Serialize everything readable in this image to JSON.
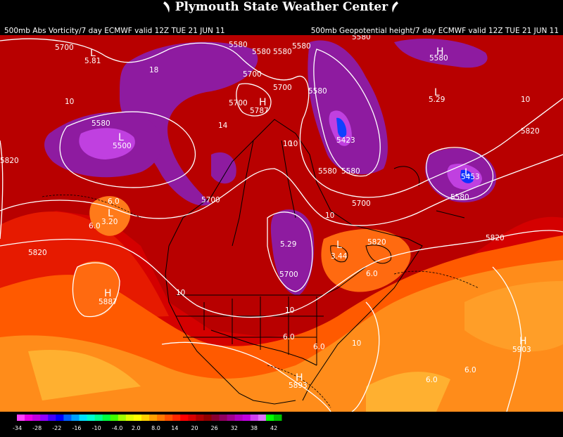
{
  "header": {
    "title": "Plymouth State Weather Center",
    "caption_left": "500mb Abs Vorticity/7 day ECMWF valid 12Z TUE 21 JUN 11",
    "caption_right": "500mb Geopotential height/7 day ECMWF valid 12Z TUE 21 JUN 11"
  },
  "map": {
    "centers": [
      {
        "type": "H",
        "value": "5787"
      },
      {
        "type": "H",
        "value": "5887"
      },
      {
        "type": "H",
        "value": "5893"
      },
      {
        "type": "H",
        "value": "5903"
      },
      {
        "type": "H",
        "value": ""
      },
      {
        "type": "L",
        "value": "5.81"
      },
      {
        "type": "L",
        "value": "5500"
      },
      {
        "type": "L",
        "value": "5423"
      },
      {
        "type": "L",
        "value": "5453"
      },
      {
        "type": "L",
        "value": "5.29"
      },
      {
        "type": "L",
        "value": "3.20"
      },
      {
        "type": "L",
        "value": "3.44"
      },
      {
        "type": "L",
        "value": "5.29"
      }
    ],
    "height_labels": [
      "5700",
      "5580",
      "5580",
      "5580",
      "5580",
      "5580",
      "5700",
      "5700",
      "5580",
      "5580",
      "5700",
      "5700",
      "5580",
      "5700",
      "5820",
      "5820",
      "5820",
      "5820",
      "5820",
      "5580",
      "5700",
      "5580",
      "5580"
    ],
    "vorticity_labels": [
      "10",
      "10",
      "18",
      "14",
      "10",
      "10",
      "10",
      "6.0",
      "6.0",
      "10",
      "10",
      "6.0",
      "6.0",
      "6.0",
      "10",
      "6.0",
      "6.0"
    ]
  },
  "colorbar": {
    "ticks": [
      "-34",
      "-28",
      "-22",
      "-16",
      "-10",
      "-4.0",
      "2.0",
      "8.0",
      "14",
      "20",
      "26",
      "32",
      "38",
      "42"
    ],
    "colors": [
      "#ff40ff",
      "#e800e8",
      "#c000e0",
      "#9000ff",
      "#4000ff",
      "#0000ff",
      "#0060ff",
      "#00a0ff",
      "#00e0ff",
      "#00ffd0",
      "#00ff90",
      "#00ff40",
      "#40ff00",
      "#a0ff00",
      "#e0ff00",
      "#ffff00",
      "#ffd000",
      "#ffa000",
      "#ff7800",
      "#ff5000",
      "#ff2800",
      "#ff0000",
      "#d80000",
      "#b00000",
      "#900000",
      "#880030",
      "#900060",
      "#a00090",
      "#b000c0",
      "#c000e0",
      "#d040f0",
      "#e070ff",
      "#00ff00",
      "#00c000"
    ]
  },
  "colors": {
    "background": "#000000",
    "vort_high_positive": "#8e1ba0",
    "vort_mid": "#cc0000",
    "vort_low": "#ff8c1a",
    "contour": "#ffffff",
    "border": "#000000"
  }
}
